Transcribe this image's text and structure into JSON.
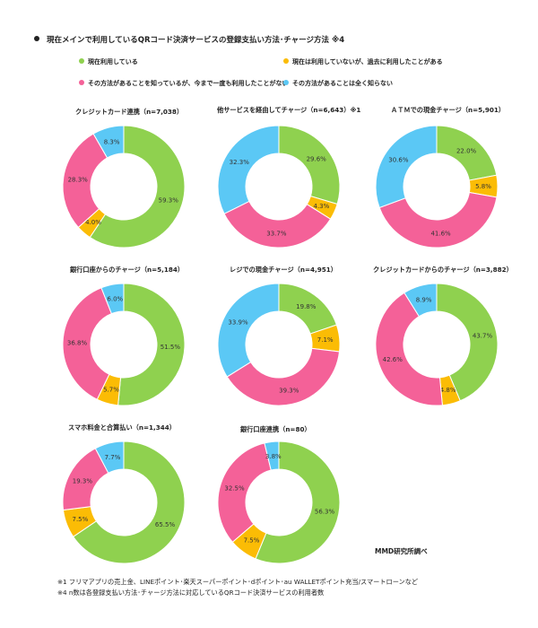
{
  "title": "現在メインで利用しているQRコード決済サービスの登録支払い方法･チャージ方法 ※4",
  "legend": [
    {
      "label": "現在利用している",
      "color": "#8fd14f"
    },
    {
      "label": "現在は利用していないが、過去に利用したことがある",
      "color": "#fbbc05"
    },
    {
      "label": "その方法があることを知っているが、今まで一度も利用したことがない",
      "color": "#f46198"
    },
    {
      "label": "その方法があることは全く知らない",
      "color": "#5bc8f5"
    }
  ],
  "chart_data": [
    {
      "type": "pie",
      "title": "クレジットカード連携（n=7,038）",
      "categories": [
        "現在利用している",
        "現在は利用していないが、過去に利用したことがある",
        "その方法があることを知っているが、今まで一度も利用したことがない",
        "その方法があることは全く知らない"
      ],
      "values": [
        59.3,
        4.0,
        28.3,
        8.3
      ],
      "labels": [
        "59.3%",
        "4.0%",
        "28.3%",
        "8.3%"
      ]
    },
    {
      "type": "pie",
      "title": "他サービスを経由してチャージ（n=6,643）※1",
      "categories": [
        "現在利用している",
        "現在は利用していないが、過去に利用したことがある",
        "その方法があることを知っているが、今まで一度も利用したことがない",
        "その方法があることは全く知らない"
      ],
      "values": [
        29.6,
        4.3,
        33.7,
        32.3
      ],
      "labels": [
        "29.6%",
        "4.3%",
        "33.7%",
        "32.3%"
      ]
    },
    {
      "type": "pie",
      "title": "ＡＴＭでの現金チャージ（n=5,901）",
      "categories": [
        "現在利用している",
        "現在は利用していないが、過去に利用したことがある",
        "その方法があることを知っているが、今まで一度も利用したことがない",
        "その方法があることは全く知らない"
      ],
      "values": [
        22.0,
        5.8,
        41.6,
        30.6
      ],
      "labels": [
        "22.0%",
        "5.8%",
        "41.6%",
        "30.6%"
      ]
    },
    {
      "type": "pie",
      "title": "銀行口座からのチャージ（n=5,184）",
      "categories": [
        "現在利用している",
        "現在は利用していないが、過去に利用したことがある",
        "その方法があることを知っているが、今まで一度も利用したことがない",
        "その方法があることは全く知らない"
      ],
      "values": [
        51.5,
        5.7,
        36.8,
        6.0
      ],
      "labels": [
        "51.5%",
        "5.7%",
        "36.8%",
        "6.0%"
      ]
    },
    {
      "type": "pie",
      "title": "レジでの現金チャージ（n=4,951）",
      "categories": [
        "現在利用している",
        "現在は利用していないが、過去に利用したことがある",
        "その方法があることを知っているが、今まで一度も利用したことがない",
        "その方法があることは全く知らない"
      ],
      "values": [
        19.8,
        7.1,
        39.3,
        33.9
      ],
      "labels": [
        "19.8%",
        "7.1%",
        "39.3%",
        "33.9%"
      ]
    },
    {
      "type": "pie",
      "title": "クレジットカードからのチャージ（n=3,882）",
      "categories": [
        "現在利用している",
        "現在は利用していないが、過去に利用したことがある",
        "その方法があることを知っているが、今まで一度も利用したことがない",
        "その方法があることは全く知らない"
      ],
      "values": [
        43.7,
        4.8,
        42.6,
        8.9
      ],
      "labels": [
        "43.7%",
        "4.8%",
        "42.6%",
        "8.9%"
      ]
    },
    {
      "type": "pie",
      "title": "スマホ料金と合算払い（n=1,344）",
      "categories": [
        "現在利用している",
        "現在は利用していないが、過去に利用したことがある",
        "その方法があることを知っているが、今まで一度も利用したことがない",
        "その方法があることは全く知らない"
      ],
      "values": [
        65.5,
        7.5,
        19.3,
        7.7
      ],
      "labels": [
        "65.5%",
        "7.5%",
        "19.3%",
        "7.7%"
      ]
    },
    {
      "type": "pie",
      "title": "銀行口座連携（n=80）",
      "categories": [
        "現在利用している",
        "現在は利用していないが、過去に利用したことがある",
        "その方法があることを知っているが、今まで一度も利用したことがない",
        "その方法があることは全く知らない"
      ],
      "values": [
        56.3,
        7.5,
        32.5,
        3.8
      ],
      "labels": [
        "56.3%",
        "7.5%",
        "32.5%",
        "3.8%"
      ]
    }
  ],
  "source": "MMD研究所調べ",
  "notes": [
    "※1 フリマアプリの売上金、LINEポイント･楽天スーパーポイント･dポイント･au WALLETポイント充当/スマートローンなど",
    "※4 n数は各登録支払い方法･チャージ方法に対応しているQRコード決済サービスの利用者数"
  ]
}
